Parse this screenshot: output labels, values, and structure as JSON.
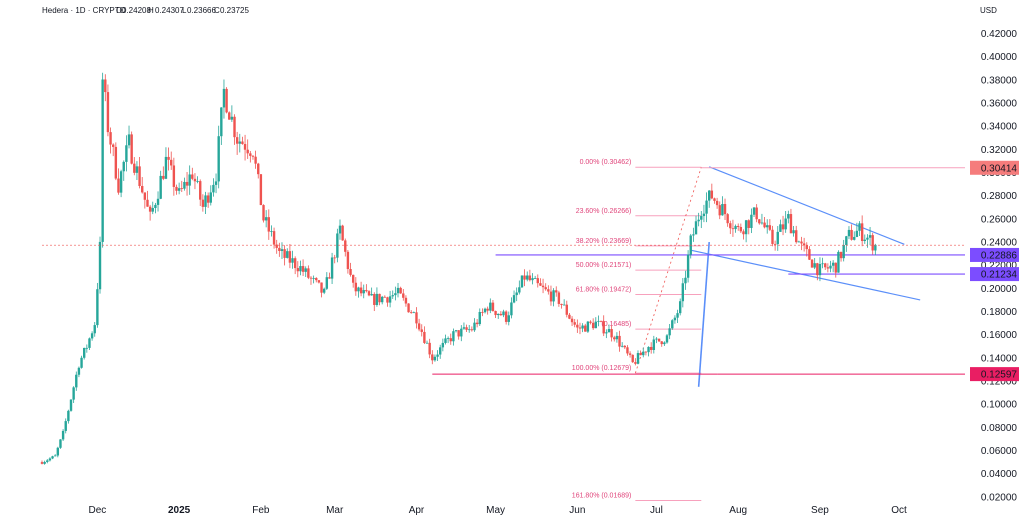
{
  "header": {
    "symbol": "Hedera · 1D · CRYPTO",
    "ohlc": [
      {
        "label": "O",
        "value": "0.24208"
      },
      {
        "label": "H",
        "value": "0.24307"
      },
      {
        "label": "L",
        "value": "0.23666"
      },
      {
        "label": "C",
        "value": "0.23725"
      }
    ],
    "currency": "USD"
  },
  "colors": {
    "up": "#26a69a",
    "down": "#ef5350",
    "fib_line": "#f7a1bd",
    "fib_text": "#e0447a",
    "trendline": "#5b8ff9",
    "resistance_badge": "#f57c7c",
    "support_badge": "#7c4dff",
    "base_badge": "#e91e63"
  },
  "chart_data": {
    "type": "candlestick",
    "ylim": [
      0.0,
      0.43
    ],
    "y_ticks": [
      "0.42000",
      "0.40000",
      "0.38000",
      "0.36000",
      "0.34000",
      "0.32000",
      "0.30000",
      "0.28000",
      "0.26000",
      "0.24000",
      "0.22000",
      "0.20000",
      "0.18000",
      "0.16000",
      "0.14000",
      "0.12000",
      "0.10000",
      "0.08000",
      "0.06000",
      "0.04000",
      "0.02000"
    ],
    "x_ticks": [
      {
        "label": "Dec",
        "date": "2024-12-01",
        "bold": false
      },
      {
        "label": "2025",
        "date": "2025-01-01",
        "bold": true
      },
      {
        "label": "Feb",
        "date": "2025-02-01",
        "bold": false
      },
      {
        "label": "Mar",
        "date": "2025-03-01",
        "bold": false
      },
      {
        "label": "Apr",
        "date": "2025-04-01",
        "bold": false
      },
      {
        "label": "May",
        "date": "2025-05-01",
        "bold": false
      },
      {
        "label": "Jun",
        "date": "2025-06-01",
        "bold": false
      },
      {
        "label": "Jul",
        "date": "2025-07-01",
        "bold": false
      },
      {
        "label": "Aug",
        "date": "2025-08-01",
        "bold": false
      },
      {
        "label": "Sep",
        "date": "2025-09-01",
        "bold": false
      },
      {
        "label": "Oct",
        "date": "2025-10-01",
        "bold": false
      }
    ],
    "price_path": [
      [
        "2024-11-10",
        0.05
      ],
      [
        "2024-11-15",
        0.055
      ],
      [
        "2024-11-18",
        0.075
      ],
      [
        "2024-11-21",
        0.105
      ],
      [
        "2024-11-24",
        0.135
      ],
      [
        "2024-11-27",
        0.15
      ],
      [
        "2024-11-30",
        0.17
      ],
      [
        "2024-12-02",
        0.235
      ],
      [
        "2024-12-03",
        0.38
      ],
      [
        "2024-12-05",
        0.34
      ],
      [
        "2024-12-09",
        0.29
      ],
      [
        "2024-12-13",
        0.325
      ],
      [
        "2024-12-18",
        0.285
      ],
      [
        "2024-12-21",
        0.26
      ],
      [
        "2024-12-27",
        0.31
      ],
      [
        "2025-01-01",
        0.28
      ],
      [
        "2025-01-06",
        0.3
      ],
      [
        "2025-01-10",
        0.27
      ],
      [
        "2025-01-15",
        0.3
      ],
      [
        "2025-01-18",
        0.37
      ],
      [
        "2025-01-23",
        0.33
      ],
      [
        "2025-01-29",
        0.32
      ],
      [
        "2025-02-02",
        0.26
      ],
      [
        "2025-02-08",
        0.23
      ],
      [
        "2025-02-15",
        0.22
      ],
      [
        "2025-02-25",
        0.195
      ],
      [
        "2025-03-03",
        0.25
      ],
      [
        "2025-03-08",
        0.2
      ],
      [
        "2025-03-15",
        0.19
      ],
      [
        "2025-03-25",
        0.195
      ],
      [
        "2025-04-01",
        0.175
      ],
      [
        "2025-04-07",
        0.14
      ],
      [
        "2025-04-15",
        0.16
      ],
      [
        "2025-04-22",
        0.165
      ],
      [
        "2025-04-28",
        0.185
      ],
      [
        "2025-05-05",
        0.175
      ],
      [
        "2025-05-12",
        0.21
      ],
      [
        "2025-05-18",
        0.2
      ],
      [
        "2025-05-25",
        0.19
      ],
      [
        "2025-06-01",
        0.165
      ],
      [
        "2025-06-08",
        0.17
      ],
      [
        "2025-06-15",
        0.16
      ],
      [
        "2025-06-22",
        0.135
      ],
      [
        "2025-06-28",
        0.15
      ],
      [
        "2025-07-05",
        0.158
      ],
      [
        "2025-07-10",
        0.185
      ],
      [
        "2025-07-14",
        0.24
      ],
      [
        "2025-07-18",
        0.27
      ],
      [
        "2025-07-22",
        0.28
      ],
      [
        "2025-07-27",
        0.265
      ],
      [
        "2025-08-01",
        0.25
      ],
      [
        "2025-08-08",
        0.265
      ],
      [
        "2025-08-14",
        0.24
      ],
      [
        "2025-08-20",
        0.26
      ],
      [
        "2025-08-25",
        0.235
      ],
      [
        "2025-09-01",
        0.215
      ],
      [
        "2025-09-07",
        0.22
      ],
      [
        "2025-09-12",
        0.245
      ],
      [
        "2025-09-16",
        0.25
      ],
      [
        "2025-09-22",
        0.237
      ]
    ],
    "fib_levels": [
      {
        "text": "0.00% (0.30462)",
        "value": 0.30462
      },
      {
        "text": "23.60% (0.26266)",
        "value": 0.26266
      },
      {
        "text": "38.20% (0.23669)",
        "value": 0.23669
      },
      {
        "text": "50.00% (0.21571)",
        "value": 0.21571
      },
      {
        "text": "61.80% (0.19472)",
        "value": 0.19472
      },
      {
        "text": "(0.16485)",
        "value": 0.16485
      },
      {
        "text": "100.00% (0.12679)",
        "value": 0.12679
      },
      {
        "text": "161.80% (0.01689)",
        "value": 0.01689
      }
    ],
    "price_labels": [
      {
        "text": "0.30414",
        "value": 0.30414,
        "kind": "resistance"
      },
      {
        "text": "0.22886",
        "value": 0.22886,
        "kind": "support"
      },
      {
        "text": "0.21234",
        "value": 0.21234,
        "kind": "support"
      },
      {
        "text": "0.12597",
        "value": 0.12597,
        "kind": "base"
      }
    ],
    "current_price": 0.23725,
    "grid": false,
    "legend": "none"
  }
}
